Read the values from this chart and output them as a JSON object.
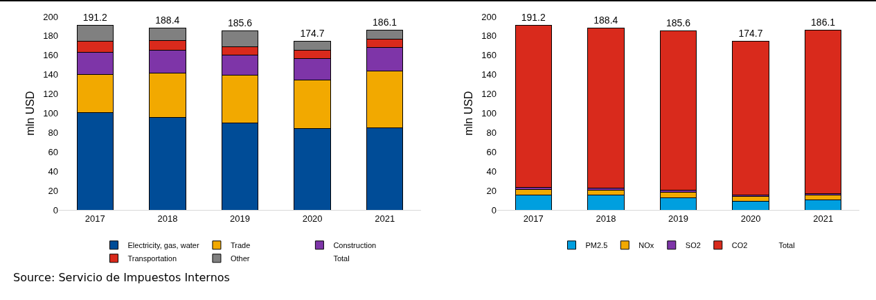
{
  "chart_data": [
    {
      "type": "bar",
      "stacked": true,
      "ylabel": "mln USD",
      "categories": [
        "2017",
        "2018",
        "2019",
        "2020",
        "2021"
      ],
      "ylim": [
        0,
        200
      ],
      "yticks": [
        0,
        20,
        40,
        60,
        80,
        100,
        120,
        140,
        160,
        180,
        200
      ],
      "grid": false,
      "legend": "bottom",
      "series": [
        {
          "name": "Electricity, gas, water",
          "color": "#004c97",
          "values": [
            100.5,
            95.4,
            89.9,
            84.4,
            85.0
          ]
        },
        {
          "name": "Trade",
          "color": "#f2a900",
          "values": [
            39.9,
            46.4,
            49.2,
            50.0,
            58.4
          ]
        },
        {
          "name": "Construction",
          "color": "#7e35a8",
          "values": [
            23.0,
            23.2,
            21.0,
            22.2,
            24.6
          ]
        },
        {
          "name": "Transportation",
          "color": "#d92a1c",
          "values": [
            11.2,
            10.1,
            8.5,
            8.7,
            8.8
          ]
        },
        {
          "name": "Other",
          "color": "#808080",
          "values": [
            16.6,
            13.3,
            17.0,
            9.4,
            9.3
          ]
        },
        {
          "name": "Total",
          "type": "scatter",
          "marker": "none",
          "values": [
            null,
            null,
            null,
            null,
            null
          ]
        }
      ],
      "totals": [
        "191.2",
        "188.4",
        "185.6",
        "174.7",
        "186.1"
      ],
      "annotations": [
        "Source: Servicio de Impuestos Internos"
      ]
    },
    {
      "type": "bar",
      "stacked": true,
      "ylabel": "mln USD",
      "categories": [
        "2017",
        "2018",
        "2019",
        "2020",
        "2021"
      ],
      "ylim": [
        0,
        200
      ],
      "yticks": [
        0,
        20,
        40,
        60,
        80,
        100,
        120,
        140,
        160,
        180,
        200
      ],
      "grid": false,
      "legend": "bottom",
      "series": [
        {
          "name": "PM2.5",
          "color": "#009fdf",
          "values": [
            15.6,
            15.3,
            12.6,
            9.0,
            10.1
          ]
        },
        {
          "name": "NOx",
          "color": "#f2a900",
          "values": [
            5.4,
            5.2,
            5.4,
            5.2,
            5.2
          ]
        },
        {
          "name": "SO2",
          "color": "#7e35a8",
          "values": [
            2.2,
            2.2,
            2.2,
            1.4,
            1.9
          ]
        },
        {
          "name": "CO2",
          "color": "#d92a1c",
          "values": [
            168.0,
            165.7,
            165.4,
            159.1,
            168.9
          ]
        },
        {
          "name": "Total",
          "type": "scatter",
          "marker": "none",
          "values": [
            null,
            null,
            null,
            null,
            null
          ]
        }
      ],
      "totals": [
        "191.2",
        "188.4",
        "185.6",
        "174.7",
        "186.1"
      ]
    }
  ]
}
